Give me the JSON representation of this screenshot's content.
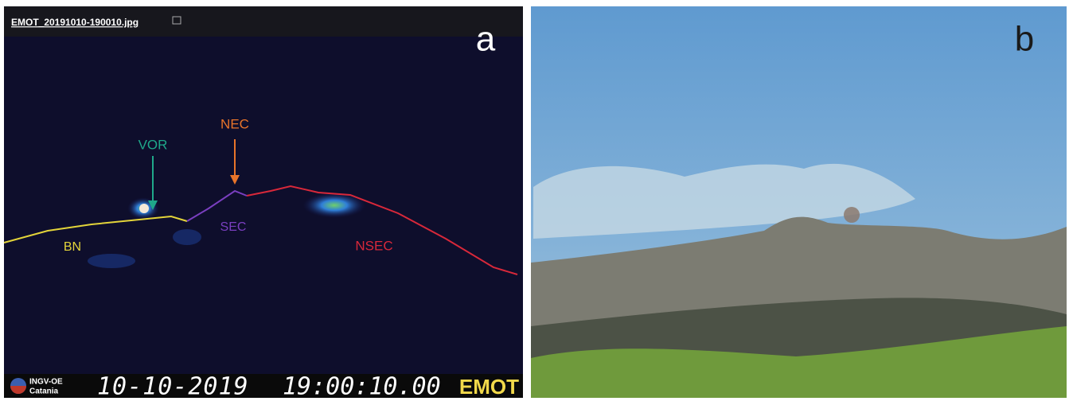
{
  "panels": [
    {
      "label": "a",
      "filename": "EMOT_20191010-190010.jpg",
      "annotations": [
        "NEC",
        "VOR",
        "SEC",
        "BN",
        "NSEC"
      ],
      "footer": {
        "logo": [
          "INGV-OE",
          "Catania"
        ],
        "date": "10-10-2019",
        "time": "19:00:10.00",
        "camera": "EMOT"
      }
    },
    {
      "label": "b"
    }
  ]
}
